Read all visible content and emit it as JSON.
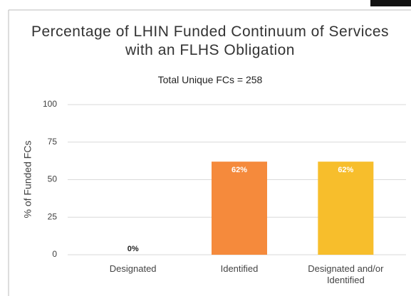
{
  "chart_data": {
    "type": "bar",
    "title": "Percentage of LHIN Funded Continuum of Services with an FLHS Obligation",
    "subtitle": "Total Unique FCs = 258",
    "y_label": "% of Funded FCs",
    "categories": [
      "Designated",
      "Identified",
      "Designated and/or Identified"
    ],
    "values": [
      0,
      62,
      62
    ],
    "value_labels": [
      "0%",
      "62%",
      "62%"
    ],
    "colors": [
      "#f58a3c",
      "#f58a3c",
      "#f7be2c"
    ],
    "ylim": [
      0,
      100
    ],
    "yticks": [
      0,
      25,
      50,
      75,
      100
    ],
    "grid": true
  }
}
